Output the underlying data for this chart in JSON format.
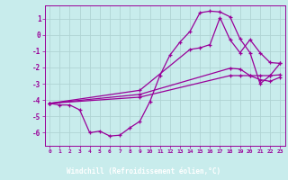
{
  "xlabel": "Windchill (Refroidissement éolien,°C)",
  "background_color": "#c8ecec",
  "line_color": "#990099",
  "grid_color": "#b0d4d4",
  "xlabel_bg": "#7744aa",
  "xlim": [
    -0.5,
    23.5
  ],
  "ylim": [
    -6.8,
    1.8
  ],
  "xticks": [
    0,
    1,
    2,
    3,
    4,
    5,
    6,
    7,
    8,
    9,
    10,
    11,
    12,
    13,
    14,
    15,
    16,
    17,
    18,
    19,
    20,
    21,
    22,
    23
  ],
  "yticks": [
    1,
    0,
    -1,
    -2,
    -3,
    -4,
    -5,
    -6
  ],
  "curve1_x": [
    0,
    1,
    2,
    3,
    4,
    5,
    6,
    7,
    8,
    9,
    10,
    11,
    12,
    13,
    14,
    15,
    16,
    17,
    18,
    19,
    20,
    21,
    22,
    23
  ],
  "curve1_y": [
    -4.2,
    -4.3,
    -4.3,
    -4.6,
    -6.0,
    -5.9,
    -6.2,
    -6.15,
    -5.7,
    -5.3,
    -4.1,
    -2.5,
    -1.25,
    -0.45,
    0.2,
    1.35,
    1.45,
    1.4,
    1.1,
    -0.25,
    -1.1,
    -3.0,
    -2.5,
    -1.75
  ],
  "line1_x": [
    0,
    9,
    19,
    20,
    22,
    23
  ],
  "line1_y": [
    -4.2,
    -3.55,
    -1.3,
    -0.3,
    -1.7,
    -1.75
  ],
  "line2_x": [
    0,
    9,
    19,
    20,
    22,
    23
  ],
  "line2_y": [
    -4.2,
    -3.7,
    -2.0,
    -2.5,
    -2.5,
    -2.45
  ],
  "line3_x": [
    0,
    9,
    19,
    20,
    22,
    23
  ],
  "line3_y": [
    -4.2,
    -3.85,
    -2.5,
    -2.5,
    -2.85,
    -2.6
  ]
}
